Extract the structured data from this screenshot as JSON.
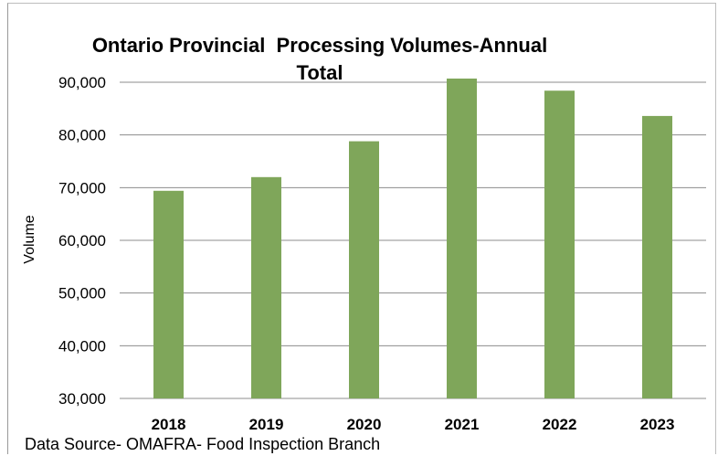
{
  "chart_data": {
    "type": "bar",
    "title": "Ontario Provincial  Processing Volumes-Annual Total",
    "xlabel": "",
    "ylabel": "Volume",
    "categories": [
      "2018",
      "2019",
      "2020",
      "2021",
      "2022",
      "2023"
    ],
    "values": [
      69400,
      72000,
      78800,
      90700,
      88400,
      83600
    ],
    "ylim": [
      30000,
      90000
    ],
    "yticks": [
      30000,
      40000,
      50000,
      60000,
      70000,
      80000,
      90000
    ],
    "ytick_labels": [
      "30,000",
      "40,000",
      "50,000",
      "60,000",
      "70,000",
      "80,000",
      "90,000"
    ],
    "grid": true,
    "legend": "none",
    "bar_color": "#7fa65a",
    "grid_color": "#8c8c8c"
  },
  "footer": {
    "source": "Data Source- OMAFRA- Food Inspection Branch"
  }
}
